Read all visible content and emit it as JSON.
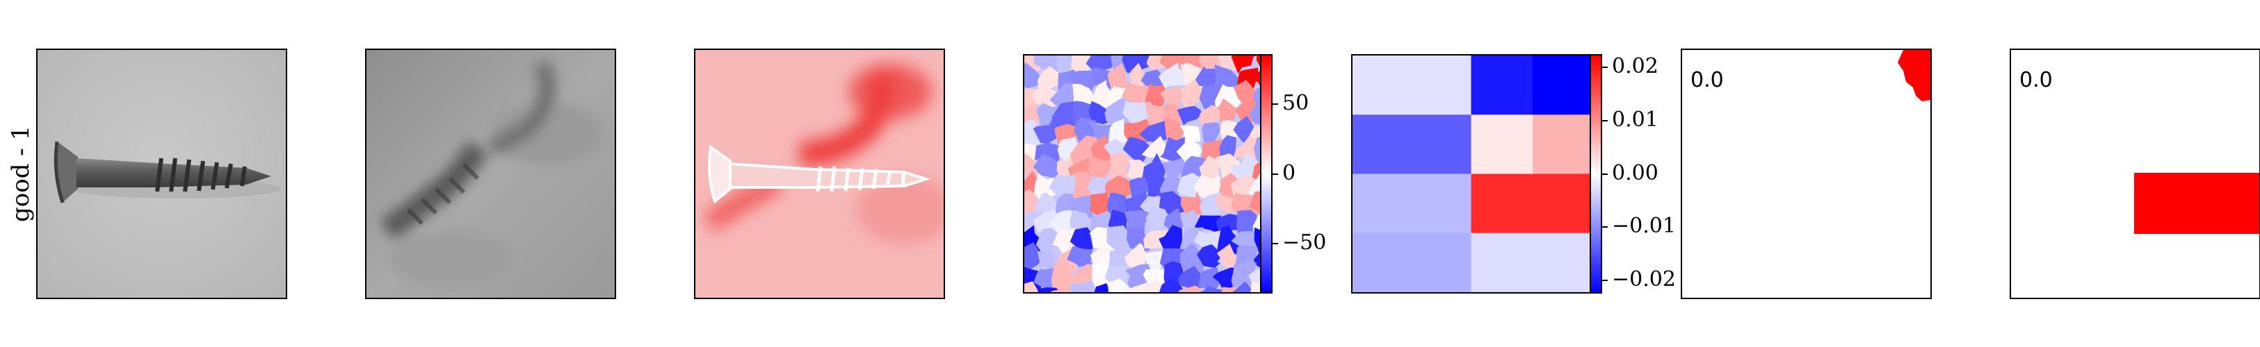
{
  "row_label": "good - 1",
  "colors": {
    "positive": "#ff0000",
    "negative": "#0000ff",
    "neutral": "#ffffff"
  },
  "panels": [
    {
      "kind": "image",
      "content": "screw photograph (grayscale)"
    },
    {
      "kind": "image",
      "content": "blurred reconstruction (grayscale)"
    },
    {
      "kind": "image",
      "content": "red difference overlay"
    },
    {
      "kind": "image",
      "content": "superpixel attribution map"
    },
    {
      "kind": "image",
      "content": "coarse grid attribution map"
    },
    {
      "kind": "mask",
      "annotation": "0.0"
    },
    {
      "kind": "mask",
      "annotation": "0.0"
    }
  ],
  "chart_data": [
    {
      "type": "heatmap",
      "panel": "superpixel-attribution",
      "colormap": "bwr",
      "colorbar": {
        "range": [
          -85,
          85
        ],
        "ticks": [
          50,
          0,
          -50
        ],
        "tick_labels": [
          "50",
          "0",
          "−50"
        ]
      }
    },
    {
      "type": "heatmap",
      "panel": "grid-attribution",
      "colormap": "bwr",
      "grid_rows": 4,
      "grid_cols": 3,
      "values": [
        [
          -0.0025,
          -0.02,
          -0.023
        ],
        [
          -0.014,
          0.002,
          0.0065
        ],
        [
          -0.006,
          0.0185,
          0.0185
        ],
        [
          -0.007,
          -0.003,
          -0.003
        ]
      ],
      "colorbar": {
        "range": [
          -0.0222,
          0.0222
        ],
        "ticks": [
          0.02,
          0.01,
          0.0,
          -0.01,
          -0.02
        ],
        "tick_labels": [
          "0.02",
          "0.01",
          "0.00",
          "−0.01",
          "−0.02"
        ]
      }
    }
  ]
}
